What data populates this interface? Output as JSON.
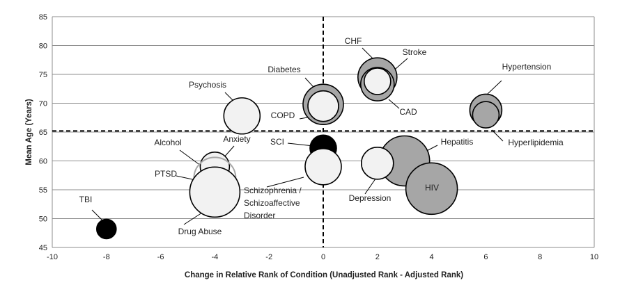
{
  "chart_data": {
    "type": "bubble",
    "xlabel": "Change in Relative Rank of Condition (Unadjusted Rank - Adjusted Rank)",
    "ylabel": "Mean Age (Years)",
    "xlim": [
      -10,
      10
    ],
    "ylim": [
      45,
      85
    ],
    "x_ticks": [
      "-10",
      "-8",
      "-6",
      "-4",
      "-2",
      "0",
      "2",
      "4",
      "6",
      "8",
      "10"
    ],
    "y_ticks": [
      "45",
      "50",
      "55",
      "60",
      "65",
      "70",
      "75",
      "80",
      "85"
    ],
    "grid": "horizontal",
    "reference_lines": {
      "x": 0,
      "y": 65.2
    },
    "colors": {
      "white": "#f2f2f2",
      "gray": "#a6a6a6",
      "black": "#000000",
      "gray_outline": "#a6a6a6"
    },
    "points": [
      {
        "name": "CHF",
        "x": 2,
        "y": 74.5,
        "size": 28,
        "color": "gray",
        "label": "CHF"
      },
      {
        "name": "CAD",
        "x": 2,
        "y": 73.3,
        "size": 24,
        "color": "gray",
        "label": "CAD"
      },
      {
        "name": "Stroke",
        "x": 2,
        "y": 73.8,
        "size": 19,
        "color": "white",
        "label": "Stroke"
      },
      {
        "name": "Diabetes",
        "x": 0,
        "y": 69.8,
        "size": 29,
        "color": "gray",
        "label": "Diabetes"
      },
      {
        "name": "COPD",
        "x": 0,
        "y": 69.5,
        "size": 22,
        "color": "white",
        "label": "COPD"
      },
      {
        "name": "Hypertension",
        "x": 6,
        "y": 68.8,
        "size": 23,
        "color": "gray",
        "label": "Hypertension"
      },
      {
        "name": "Hyperlipidemia",
        "x": 6,
        "y": 68.0,
        "size": 19,
        "color": "gray",
        "label": "Hyperlipidemia"
      },
      {
        "name": "Psychosis",
        "x": -3,
        "y": 67.8,
        "size": 26,
        "color": "white",
        "label": "Psychosis"
      },
      {
        "name": "SCI",
        "x": 0,
        "y": 62.2,
        "size": 19,
        "color": "black",
        "label": "SCI"
      },
      {
        "name": "Hepatitis",
        "x": 3,
        "y": 60.0,
        "size": 36,
        "color": "gray",
        "label": "Hepatitis"
      },
      {
        "name": "Depression",
        "x": 2,
        "y": 59.6,
        "size": 23,
        "color": "white",
        "label": "Depression"
      },
      {
        "name": "Schizophrenia / Schizoaffective Disorder",
        "x": 0,
        "y": 59.0,
        "size": 26,
        "color": "white",
        "label": "Schizophrenia / Schizoaffective Disorder"
      },
      {
        "name": "Anxiety",
        "x": -4,
        "y": 59.0,
        "size": 21,
        "color": "white",
        "label": "Anxiety"
      },
      {
        "name": "Alcohol",
        "x": -4,
        "y": 57.0,
        "size": 30,
        "color": "white",
        "label": "Alcohol"
      },
      {
        "name": "HIV",
        "x": 4,
        "y": 55.2,
        "size": 37,
        "color": "gray",
        "label": "HIV"
      },
      {
        "name": "PTSD",
        "x": -4,
        "y": 56.2,
        "size": 9,
        "color": "white",
        "label": "PTSD"
      },
      {
        "name": "Drug Abuse",
        "x": -4,
        "y": 54.6,
        "size": 36,
        "color": "white",
        "label": "Drug Abuse"
      },
      {
        "name": "TBI",
        "x": -8,
        "y": 48.2,
        "size": 14,
        "color": "black",
        "label": "TBI"
      }
    ]
  }
}
